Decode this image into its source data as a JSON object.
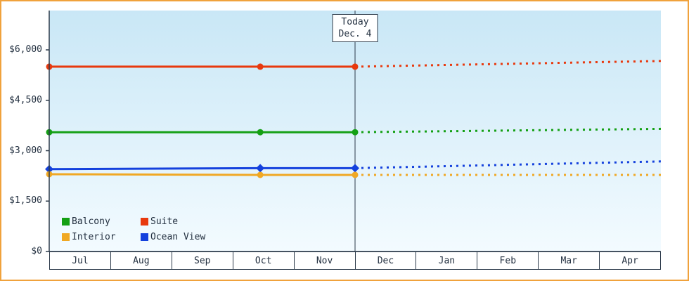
{
  "chart_data": {
    "type": "line",
    "title": "",
    "xlabel": "",
    "ylabel": "",
    "grid": false,
    "legend_position": "bottom-left inside plot",
    "x_categories": [
      "Jul",
      "Aug",
      "Sep",
      "Oct",
      "Nov",
      "Dec",
      "Jan",
      "Feb",
      "Mar",
      "Apr"
    ],
    "y_ticks": [
      {
        "value": 0,
        "label": "$0"
      },
      {
        "value": 1500,
        "label": "$1,500"
      },
      {
        "value": 3000,
        "label": "$3,000"
      },
      {
        "value": 4500,
        "label": "$4,500"
      },
      {
        "value": 6000,
        "label": "$6,000"
      }
    ],
    "ylim": [
      0,
      7200
    ],
    "today": {
      "line1": "Today",
      "line2": "Dec. 4",
      "month_unit_x": 5
    },
    "series": [
      {
        "name": "Suite",
        "color": "#e8390e",
        "marker": "circle",
        "actual": {
          "x": [
            0,
            3.45,
            5
          ],
          "values": [
            5500,
            5500,
            5500
          ]
        },
        "forecast": {
          "x": [
            5,
            10
          ],
          "values": [
            5500,
            5670
          ]
        }
      },
      {
        "name": "Balcony",
        "color": "#14a014",
        "marker": "circle",
        "actual": {
          "x": [
            0,
            3.45,
            5
          ],
          "values": [
            3550,
            3550,
            3550
          ]
        },
        "forecast": {
          "x": [
            5,
            10
          ],
          "values": [
            3550,
            3650
          ]
        }
      },
      {
        "name": "Ocean View",
        "color": "#1441dd",
        "marker": "diamond",
        "actual": {
          "x": [
            0,
            3.45,
            5
          ],
          "values": [
            2450,
            2480,
            2480
          ]
        },
        "forecast": {
          "x": [
            5,
            10
          ],
          "values": [
            2480,
            2680
          ]
        }
      },
      {
        "name": "Interior",
        "color": "#f0a824",
        "marker": "circle",
        "actual": {
          "x": [
            0,
            3.45,
            5
          ],
          "values": [
            2300,
            2280,
            2280
          ]
        },
        "forecast": {
          "x": [
            5,
            10
          ],
          "values": [
            2280,
            2280
          ]
        }
      }
    ],
    "legend": [
      {
        "label": "Balcony",
        "color": "#14a014"
      },
      {
        "label": "Suite",
        "color": "#e8390e"
      },
      {
        "label": "Interior",
        "color": "#f0a824"
      },
      {
        "label": "Ocean View",
        "color": "#1441dd"
      }
    ]
  },
  "colors": {
    "frame_border": "#f0a23c",
    "axis": "#2c3a4a",
    "plot_gradient_top": "#c9e7f6",
    "plot_gradient_bottom": "#f3fbff",
    "text": "#233040"
  }
}
